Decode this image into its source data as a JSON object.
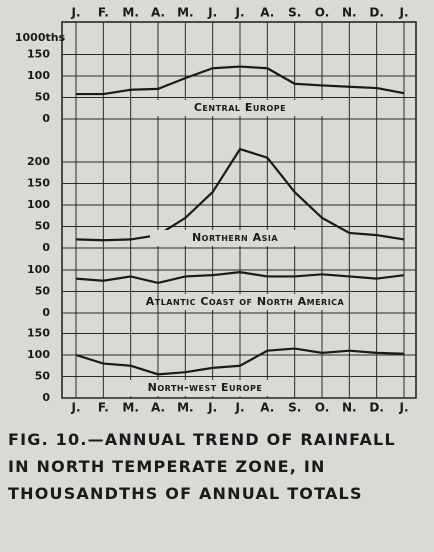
{
  "chart_data": {
    "type": "line",
    "title": "FIG. 10.—ANNUAL TREND OF RAINFALL IN NORTH TEMPERATE ZONE, IN THOUSANDTHS OF ANNUAL TOTALS",
    "y_label": "1000ths",
    "categories": [
      "J.",
      "F.",
      "M.",
      "A.",
      "M.",
      "J.",
      "J.",
      "A.",
      "S.",
      "O.",
      "N.",
      "D.",
      "J."
    ],
    "grid": true,
    "series": [
      {
        "name": "Central Europe",
        "color": "#1a1a1a",
        "ylim": [
          0,
          150
        ],
        "yticks": [
          0,
          50,
          100,
          150
        ],
        "values": [
          58,
          58,
          68,
          70,
          95,
          118,
          122,
          118,
          82,
          78,
          75,
          72,
          60
        ]
      },
      {
        "name": "Northern Asia",
        "color": "#1a1a1a",
        "ylim": [
          0,
          200
        ],
        "yticks": [
          0,
          50,
          100,
          150,
          200
        ],
        "values": [
          20,
          18,
          20,
          30,
          70,
          130,
          230,
          210,
          130,
          70,
          35,
          30,
          20
        ]
      },
      {
        "name": "Atlantic Coast of North America",
        "color": "#1a1a1a",
        "ylim": [
          0,
          100
        ],
        "yticks": [
          0,
          50,
          100
        ],
        "values": [
          80,
          75,
          85,
          70,
          85,
          88,
          95,
          85,
          85,
          90,
          85,
          80,
          88
        ]
      },
      {
        "name": "North-west Europe",
        "color": "#1a1a1a",
        "ylim": [
          0,
          150
        ],
        "yticks": [
          0,
          50,
          100,
          150
        ],
        "values": [
          100,
          80,
          75,
          55,
          60,
          70,
          75,
          110,
          115,
          105,
          110,
          105,
          103
        ]
      }
    ]
  }
}
